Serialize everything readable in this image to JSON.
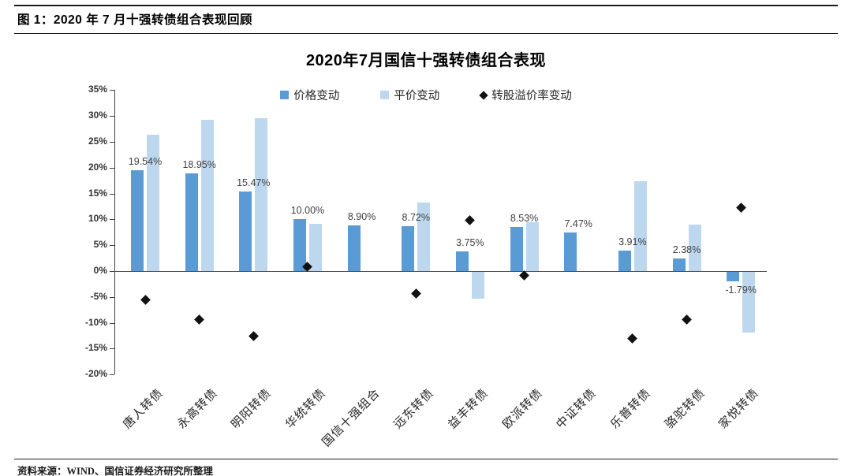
{
  "header": {
    "figure_label": "图 1：2020 年 7 月十强转债组合表现回顾"
  },
  "footer": {
    "source": "资料来源：WIND、国信证券经济研究所整理"
  },
  "chart_data": {
    "type": "bar",
    "title": "2020年7月国信十强转债组合表现",
    "grid": false,
    "legend_position": "top",
    "y_axis": {
      "min": -20,
      "max": 35,
      "step": 5,
      "tick_suffix": "%"
    },
    "categories": [
      "唐人转债",
      "永高转债",
      "明阳转债",
      "华统转债",
      "国信十强组合",
      "远东转债",
      "益丰转债",
      "欧派转债",
      "中证转债",
      "乐普转债",
      "骆驼转债",
      "家悦转债"
    ],
    "series": [
      {
        "name": "价格变动",
        "type": "bar",
        "color": "#5B9BD5",
        "values": [
          19.54,
          18.95,
          15.47,
          10.0,
          8.9,
          8.72,
          3.75,
          8.53,
          7.47,
          3.91,
          2.38,
          -1.79
        ],
        "data_labels": [
          "19.54%",
          "18.95%",
          "15.47%",
          "10.00%",
          "8.90%",
          "8.72%",
          "3.75%",
          "8.53%",
          "7.47%",
          "3.91%",
          "2.38%",
          "-1.79%"
        ]
      },
      {
        "name": "平价变动",
        "type": "bar",
        "color": "#BDD7EE",
        "values": [
          26.3,
          29.3,
          29.6,
          9.2,
          null,
          13.2,
          -5.2,
          9.4,
          null,
          17.4,
          9.0,
          -11.8
        ]
      },
      {
        "name": "转股溢价率变动",
        "type": "scatter",
        "marker": "diamond",
        "color": "#111111",
        "values": [
          -5.6,
          -9.3,
          -12.6,
          0.8,
          null,
          -4.3,
          9.8,
          -0.9,
          null,
          -13.1,
          -9.4,
          12.2
        ]
      }
    ],
    "legend": [
      {
        "label": "价格变动",
        "marker": "square",
        "color": "#5B9BD5"
      },
      {
        "label": "平价变动",
        "marker": "square",
        "color": "#BDD7EE"
      },
      {
        "label": "转股溢价率变动",
        "marker": "diamond",
        "color": "#111111"
      }
    ]
  }
}
